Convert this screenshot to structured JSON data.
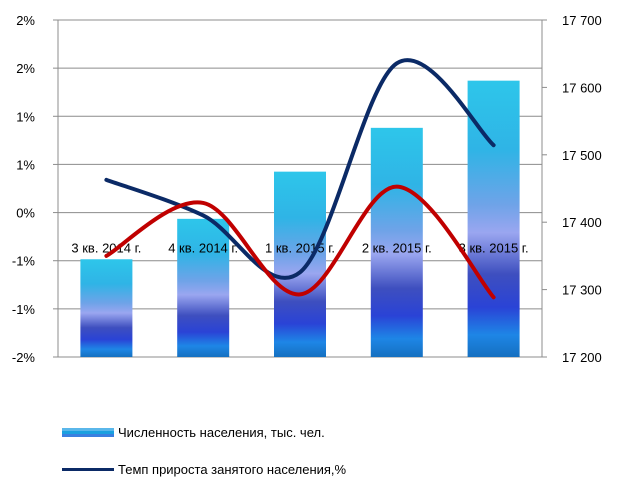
{
  "chart_data": {
    "type": "bar",
    "categories": [
      "3 кв. 2014 г.",
      "4 кв. 2014 г.",
      "1 кв. 2015 г.",
      "2 кв. 2015 г.",
      "3 кв. 2015 г."
    ],
    "y_left": {
      "min": -0.015,
      "max": 0.02,
      "ticks": [
        -0.015,
        -0.01,
        -0.005,
        0,
        0.005,
        0.01,
        0.015,
        0.02
      ],
      "tick_labels": [
        "-2%",
        "-1%",
        "-1%",
        "0%",
        "1%",
        "1%",
        "2%",
        "2%"
      ]
    },
    "y_right": {
      "min": 17200,
      "max": 17700,
      "ticks": [
        17200,
        17300,
        17400,
        17500,
        17600,
        17700
      ],
      "tick_labels": [
        "17 200",
        "17 300",
        "17 400",
        "17 500",
        "17 600",
        "17 700"
      ]
    },
    "series": [
      {
        "name": "Численность населения, тыс. чел.",
        "type": "bar",
        "axis": "right",
        "values": [
          17345,
          17405,
          17475,
          17540,
          17610
        ],
        "color": "#1f8fe0"
      },
      {
        "name": "Темп прироста занятого населения,%",
        "type": "line",
        "axis": "left",
        "values": [
          0.0034,
          -0.0003,
          -0.0062,
          0.0155,
          0.007
        ],
        "color": "#0b2a66"
      },
      {
        "name": "",
        "type": "line",
        "axis": "left",
        "values": [
          -0.0045,
          0.001,
          -0.0085,
          0.0027,
          -0.0088
        ],
        "color": "#c00000"
      }
    ],
    "grid": true
  },
  "legend": {
    "items": [
      {
        "label": "Численность населения, тыс. чел."
      },
      {
        "label": "Темп прироста занятого населения,%"
      }
    ]
  }
}
